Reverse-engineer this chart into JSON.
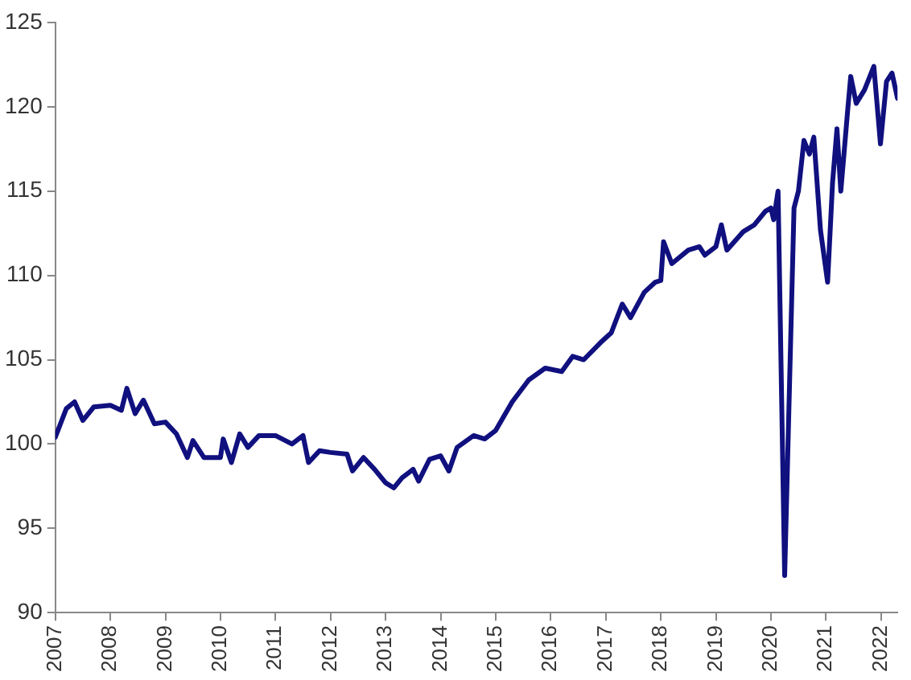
{
  "chart_data": {
    "type": "line",
    "xlim": [
      2007,
      2022.3
    ],
    "xticks": [
      2007,
      2008,
      2009,
      2010,
      2011,
      2012,
      2013,
      2014,
      2015,
      2016,
      2017,
      2018,
      2019,
      2020,
      2021,
      2022
    ],
    "ylim": [
      90,
      125
    ],
    "yticks": [
      90,
      95,
      100,
      105,
      110,
      115,
      120,
      125
    ],
    "grid": false,
    "legend": false,
    "marker": "none",
    "line_style": "solid",
    "series": [
      {
        "color": "#10107f",
        "x": [
          2007.0,
          2007.2,
          2007.35,
          2007.5,
          2007.7,
          2008.0,
          2008.2,
          2008.3,
          2008.45,
          2008.6,
          2008.8,
          2009.0,
          2009.2,
          2009.4,
          2009.5,
          2009.7,
          2010.0,
          2010.05,
          2010.2,
          2010.35,
          2010.5,
          2010.7,
          2011.0,
          2011.3,
          2011.5,
          2011.6,
          2011.8,
          2012.0,
          2012.3,
          2012.4,
          2012.6,
          2012.8,
          2013.0,
          2013.15,
          2013.3,
          2013.5,
          2013.6,
          2013.8,
          2014.0,
          2014.15,
          2014.3,
          2014.6,
          2014.8,
          2015.0,
          2015.3,
          2015.6,
          2015.9,
          2016.2,
          2016.4,
          2016.6,
          2016.9,
          2017.1,
          2017.3,
          2017.45,
          2017.7,
          2017.9,
          2018.0,
          2018.05,
          2018.2,
          2018.5,
          2018.7,
          2018.8,
          2019.0,
          2019.1,
          2019.2,
          2019.5,
          2019.7,
          2019.9,
          2020.0,
          2020.05,
          2020.13,
          2020.25,
          2020.42,
          2020.5,
          2020.6,
          2020.7,
          2020.78,
          2020.9,
          2021.03,
          2021.12,
          2021.2,
          2021.27,
          2021.4,
          2021.45,
          2021.55,
          2021.7,
          2021.87,
          2021.99,
          2022.1,
          2022.2,
          2022.3
        ],
        "values": [
          100.4,
          102.1,
          102.5,
          101.4,
          102.2,
          102.3,
          102.0,
          103.3,
          101.8,
          102.6,
          101.2,
          101.3,
          100.6,
          99.2,
          100.2,
          99.2,
          99.2,
          100.3,
          98.9,
          100.6,
          99.8,
          100.5,
          100.5,
          100.0,
          100.5,
          98.9,
          99.6,
          99.5,
          99.4,
          98.4,
          99.2,
          98.5,
          97.7,
          97.4,
          98.0,
          98.5,
          97.8,
          99.1,
          99.3,
          98.4,
          99.8,
          100.5,
          100.3,
          100.8,
          102.5,
          103.8,
          104.5,
          104.3,
          105.2,
          105.0,
          106.0,
          106.6,
          108.3,
          107.5,
          109.0,
          109.6,
          109.7,
          112.0,
          110.7,
          111.5,
          111.7,
          111.2,
          111.7,
          113.0,
          111.5,
          112.6,
          113.0,
          113.8,
          114.0,
          113.3,
          115.0,
          92.2,
          114.0,
          115.0,
          118.0,
          117.2,
          118.2,
          112.7,
          109.6,
          115.5,
          118.7,
          115.0,
          120.0,
          121.8,
          120.2,
          121.0,
          122.4,
          117.8,
          121.5,
          122.0,
          120.5
        ]
      }
    ]
  }
}
